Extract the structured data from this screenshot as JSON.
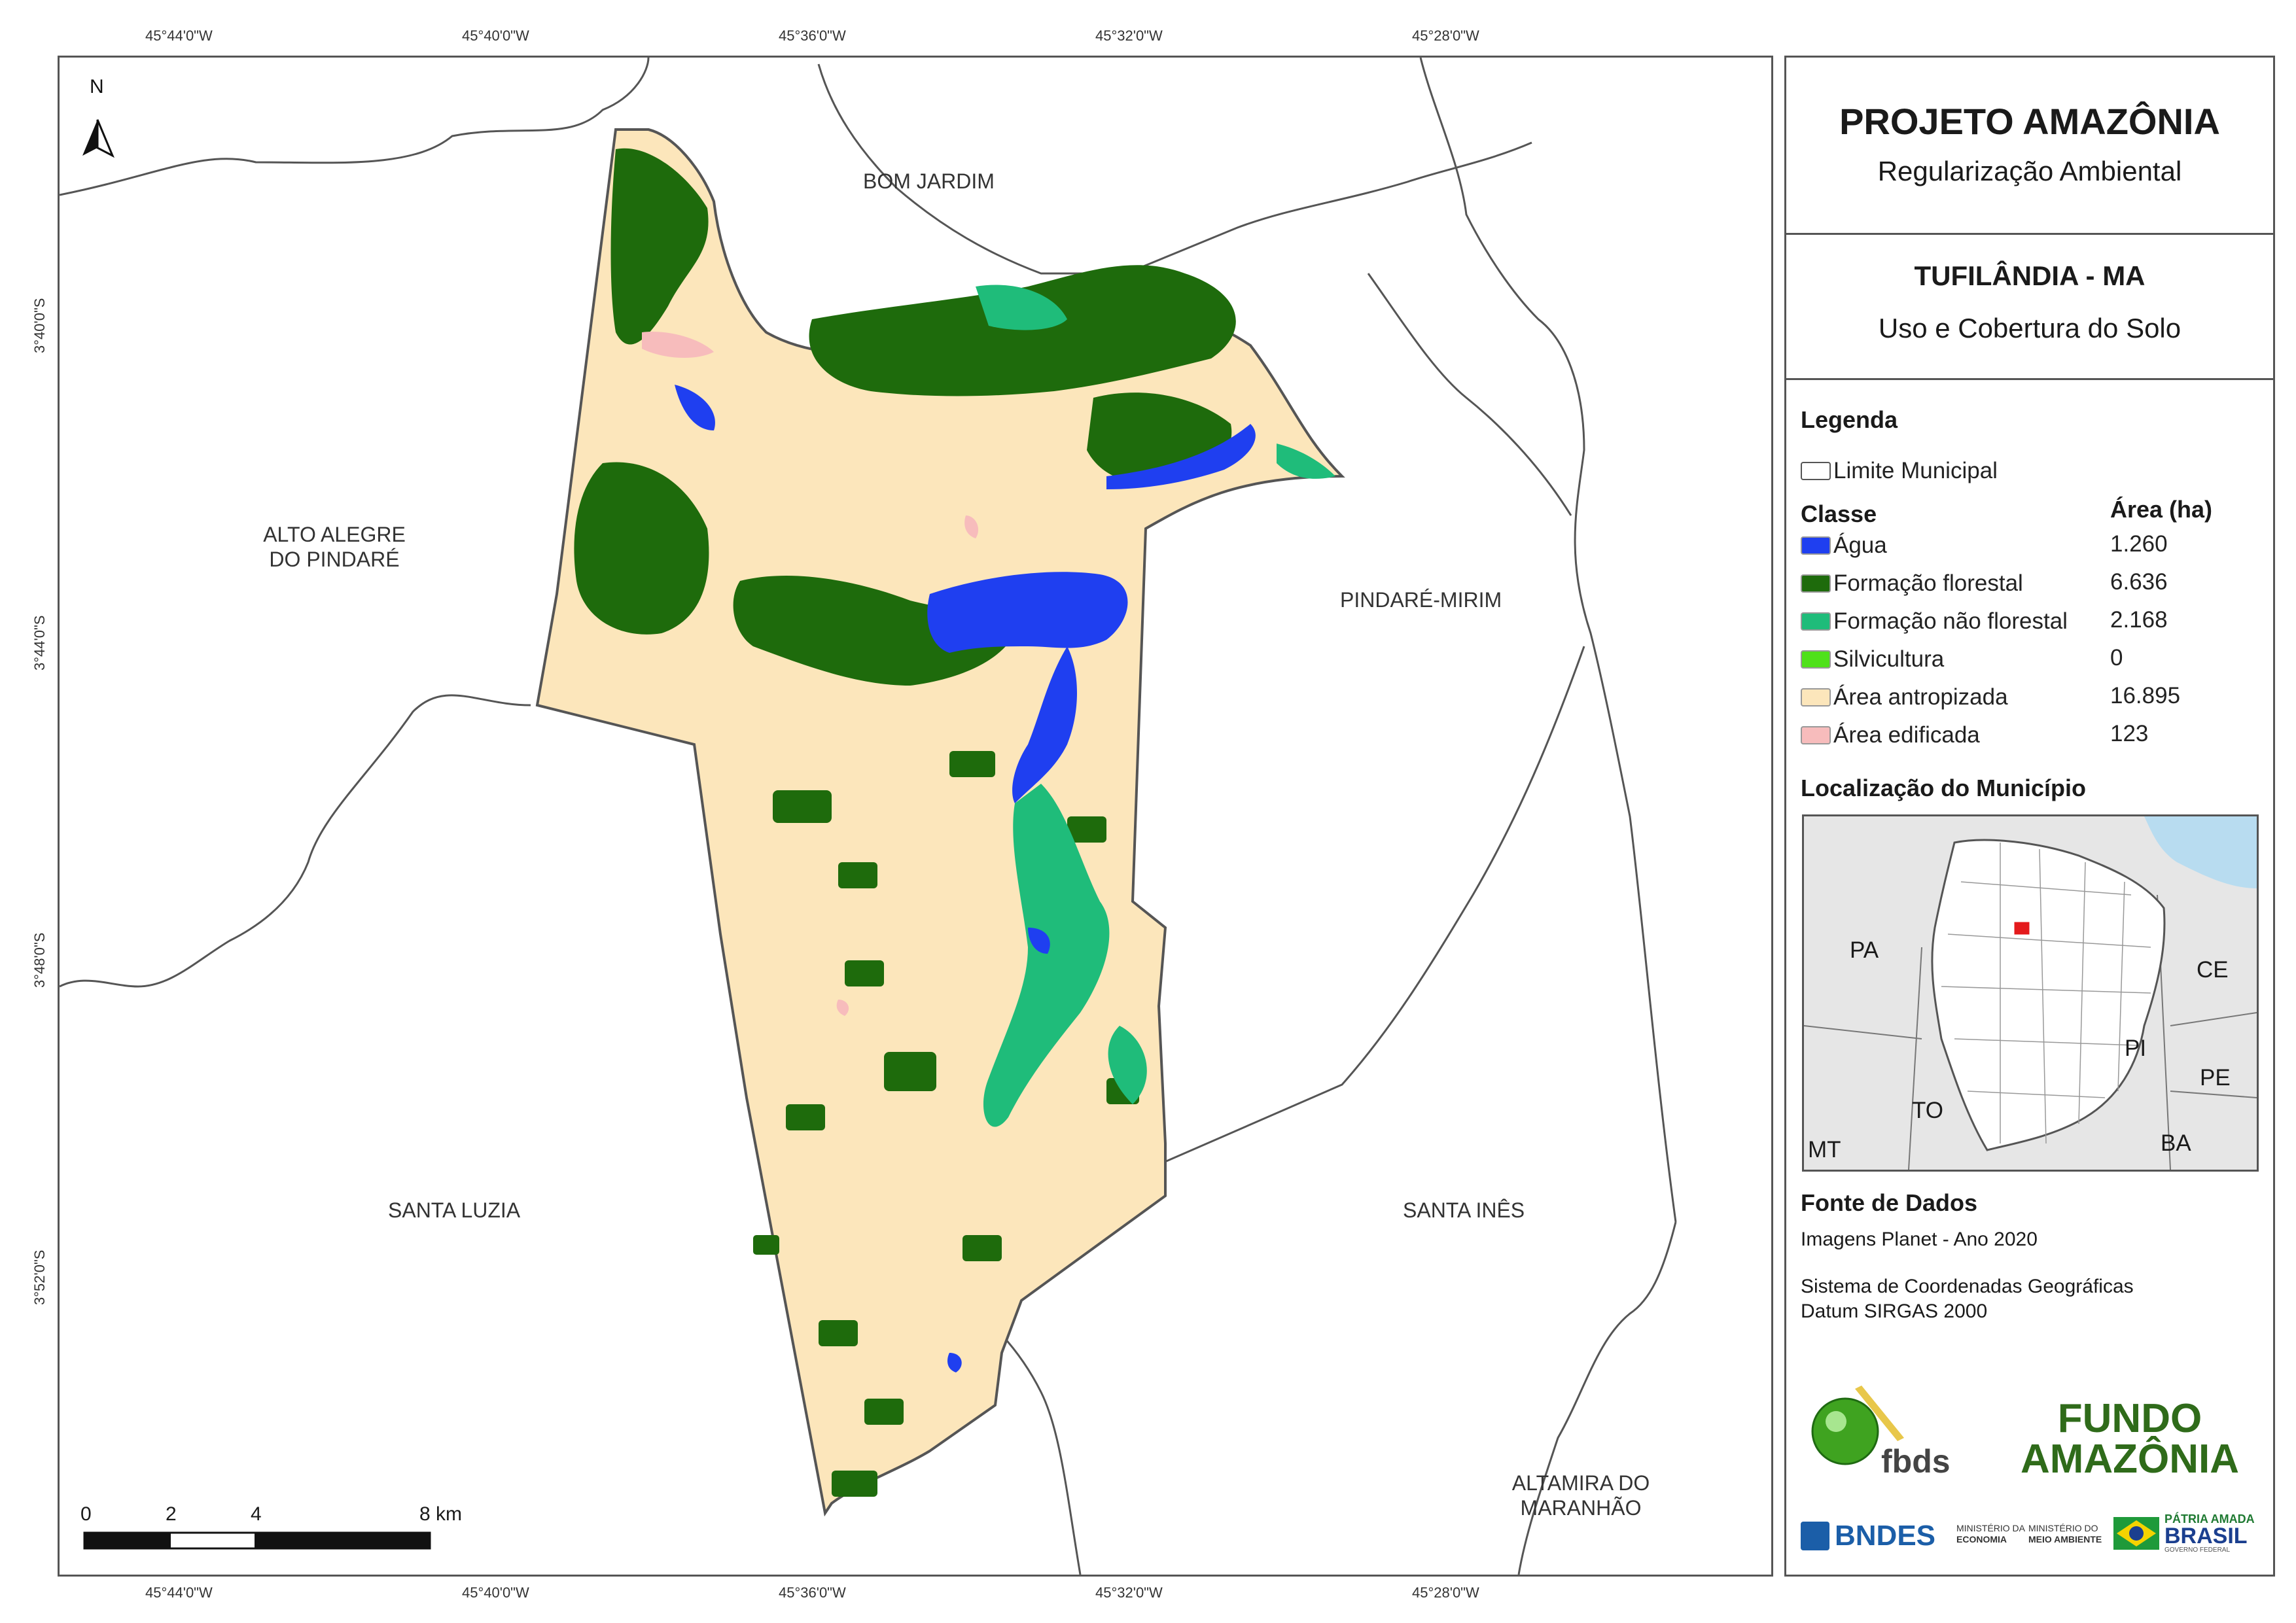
{
  "coords": {
    "top": [
      "45°44'0\"W",
      "45°40'0\"W",
      "45°36'0\"W",
      "45°32'0\"W",
      "45°28'0\"W"
    ],
    "bottom": [
      "45°44'0\"W",
      "45°40'0\"W",
      "45°36'0\"W",
      "45°32'0\"W",
      "45°28'0\"W"
    ],
    "left": [
      "3°40'0\"S",
      "3°44'0\"S",
      "3°48'0\"S",
      "3°52'0\"S"
    ]
  },
  "map": {
    "north_label": "N",
    "municipalities": {
      "bom_jardim": "BOM JARDIM",
      "alto_alegre_1": "ALTO ALEGRE",
      "alto_alegre_2": "DO PINDARÉ",
      "pindare_mirim": "PINDARÉ-MIRIM",
      "santa_luzia": "SANTA LUZIA",
      "santa_ines": "SANTA INÊS",
      "altamira_1": "ALTAMIRA DO",
      "altamira_2": "MARANHÃO"
    },
    "scale": {
      "labels": [
        "0",
        "2",
        "4",
        "8 km"
      ]
    }
  },
  "panel": {
    "project_title": "PROJETO AMAZÔNIA",
    "project_subtitle": "Regularização Ambiental",
    "place_title": "TUFILÂNDIA - MA",
    "place_subtitle": "Uso e Cobertura do Solo",
    "legend_title": "Legenda",
    "boundary_label": "Limite Municipal",
    "class_header": "Classe",
    "area_header": "Área (ha)",
    "classes": [
      {
        "label": "Água",
        "area": "1.260",
        "color": "#1f3ff0"
      },
      {
        "label": "Formação florestal",
        "area": "6.636",
        "color": "#1e6b0c"
      },
      {
        "label": "Formação não florestal",
        "area": "2.168",
        "color": "#1fbc7a"
      },
      {
        "label": "Silvicultura",
        "area": "0",
        "color": "#4fe11a"
      },
      {
        "label": "Área antropizada",
        "area": "16.895",
        "color": "#fce6bb"
      },
      {
        "label": "Área edificada",
        "area": "123",
        "color": "#f7bcbc"
      }
    ],
    "location_title": "Localização do Município",
    "inset_states": [
      "PA",
      "CE",
      "PI",
      "PE",
      "TO",
      "BA",
      "MT"
    ],
    "sources_title": "Fonte de Dados",
    "source_line": "Imagens Planet - Ano 2020",
    "crs_line1": "Sistema de Coordenadas Geográficas",
    "crs_line2": "Datum SIRGAS 2000",
    "logos": {
      "fbds": "fbds",
      "fundo_1": "FUNDO",
      "fundo_2": "AMAZÔNIA",
      "bndes": "BNDES",
      "min_economia_1": "MINISTÉRIO DA",
      "min_economia_2": "ECONOMIA",
      "min_ambiente_1": "MINISTÉRIO DO",
      "min_ambiente_2": "MEIO AMBIENTE",
      "patria_1": "PÁTRIA AMADA",
      "patria_2": "BRASIL",
      "patria_3": "GOVERNO FEDERAL"
    }
  }
}
